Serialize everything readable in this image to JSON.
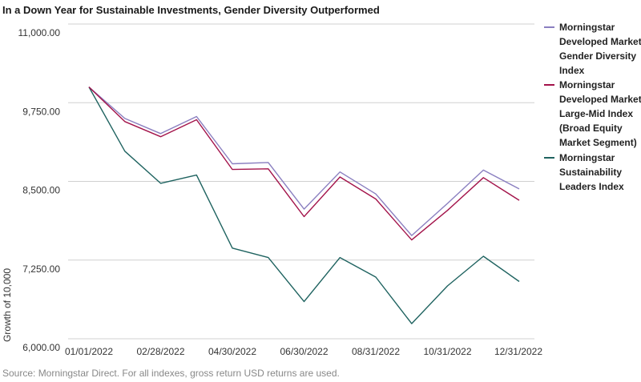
{
  "chart_data": {
    "type": "line",
    "title": "In a Down Year for Sustainable Investments, Gender Diversity Outperformed",
    "ylabel": "Growth of 10,000",
    "xlabel": "",
    "ylim": [
      6000,
      11000
    ],
    "yticks": [
      "11,000.00",
      "9,750.00",
      "8,500.00",
      "7,250.00",
      "6,000.00"
    ],
    "ytick_values": [
      11000,
      9750,
      8500,
      7250,
      6000
    ],
    "x": [
      "2021-12-31",
      "2022-01-31",
      "2022-02-28",
      "2022-03-31",
      "2022-04-30",
      "2022-05-31",
      "2022-06-30",
      "2022-07-31",
      "2022-08-31",
      "2022-09-30",
      "2022-10-31",
      "2022-11-30",
      "2022-12-31"
    ],
    "xticks": [
      "01/01/2022",
      "02/28/2022",
      "04/30/2022",
      "06/30/2022",
      "08/31/2022",
      "10/31/2022",
      "12/31/2022"
    ],
    "xtick_indices": [
      0,
      2,
      4,
      6,
      8,
      10,
      12
    ],
    "grid": true,
    "legend_position": "right",
    "series": [
      {
        "name": "Morningstar Developed Markets Gender Diversity Index",
        "legend_lines": [
          "Morningstar",
          "Developed Markets",
          "Gender Diversity",
          "Index"
        ],
        "color": "#8a7fc0",
        "values": [
          10000,
          9500,
          9260,
          9530,
          8780,
          8800,
          8060,
          8650,
          8300,
          7640,
          8150,
          8680,
          8380
        ]
      },
      {
        "name": "Morningstar Developed Markets Large-Mid Index (Broad Equity Market Segment)",
        "legend_lines": [
          "Morningstar",
          "Developed Markets",
          "Large-Mid Index",
          "(Broad Equity",
          "Market Segment)"
        ],
        "color": "#a3134a",
        "values": [
          10000,
          9450,
          9210,
          9480,
          8690,
          8700,
          7940,
          8570,
          8220,
          7570,
          8040,
          8560,
          8200
        ]
      },
      {
        "name": "Morningstar Sustainability Leaders Index",
        "legend_lines": [
          "Morningstar",
          "Sustainability",
          "Leaders Index"
        ],
        "color": "#1f6360",
        "values": [
          10000,
          8980,
          8470,
          8600,
          7440,
          7290,
          6590,
          7290,
          6980,
          6240,
          6840,
          7310,
          6910
        ]
      }
    ]
  },
  "source": "Source: Morningstar Direct. For all indexes, gross return USD returns are used."
}
